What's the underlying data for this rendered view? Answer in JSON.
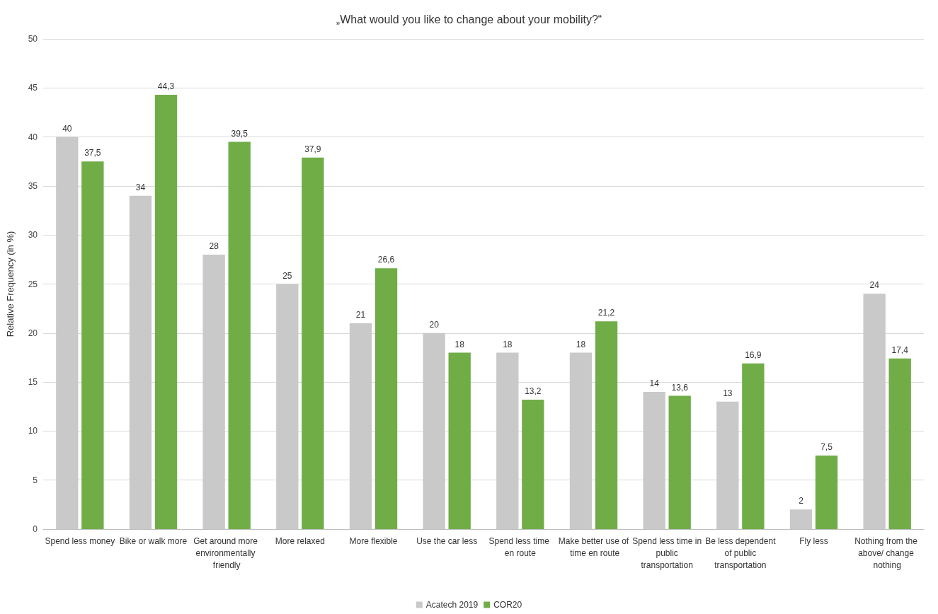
{
  "chart_data": {
    "type": "bar",
    "title": "„What would you like to change about your mobility?“",
    "ylabel": "Relative Frequency (in %)",
    "categories": [
      "Spend less money",
      "Bike or walk more",
      "Get around more environmentally friendly",
      "More relaxed",
      "More flexible",
      "Use the car less",
      "Spend less time en route",
      "Make better use of time en route",
      "Spend less time in public transportation",
      "Be less dependent of public transportation",
      "Fly less",
      "Nothing from the above/ change nothing"
    ],
    "series": [
      {
        "name": "Acatech 2019",
        "color": "#c9c9c9",
        "values": [
          40,
          34,
          28,
          25,
          21,
          20,
          18,
          18,
          14,
          13,
          2,
          24
        ],
        "value_labels": [
          "40",
          "34",
          "28",
          "25",
          "21",
          "20",
          "18",
          "18",
          "14",
          "13",
          "2",
          "24"
        ]
      },
      {
        "name": "COR20",
        "color": "#70ad47",
        "values": [
          37.5,
          44.3,
          39.5,
          37.9,
          26.6,
          18,
          13.2,
          21.2,
          13.6,
          16.9,
          7.5,
          17.4
        ],
        "value_labels": [
          "37,5",
          "44,3",
          "39,5",
          "37,9",
          "26,6",
          "18",
          "13,2",
          "21,2",
          "13,6",
          "16,9",
          "7,5",
          "17,4"
        ]
      }
    ],
    "ylim": [
      0,
      50
    ],
    "yticks": [
      0,
      5,
      10,
      15,
      20,
      25,
      30,
      35,
      40,
      45,
      50
    ],
    "grid": "y",
    "legend": "bottom"
  }
}
